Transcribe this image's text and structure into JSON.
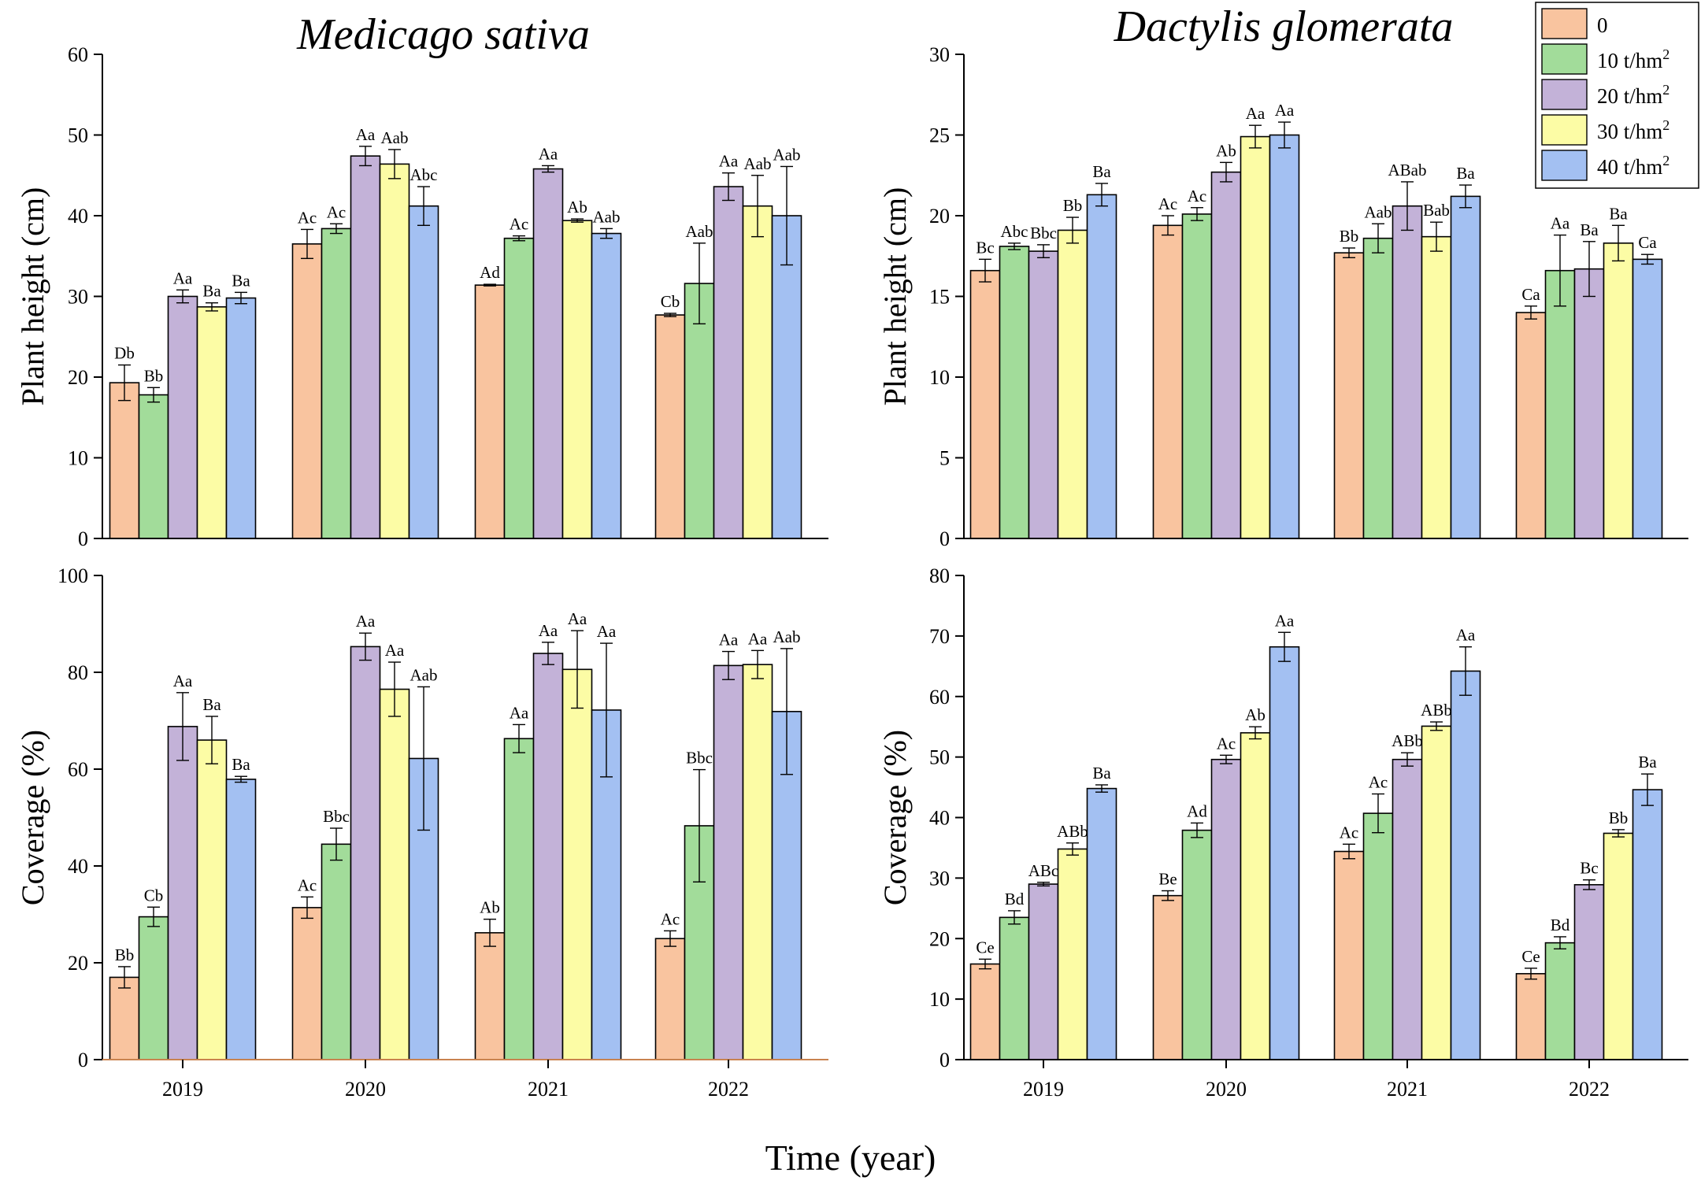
{
  "figure": {
    "xlabel": "Time (year)",
    "series_names": [
      "0",
      "10 t/hm",
      "20 t/hm",
      "30 t/hm",
      "40 t/hm"
    ],
    "series_superscripts": [
      "",
      "2",
      "2",
      "2",
      "2"
    ],
    "series_colors": [
      "#F9C49F",
      "#A2DC9A",
      "#C3B2D8",
      "#FCFCA5",
      "#A3C0F2"
    ],
    "years": [
      "2019",
      "2020",
      "2021",
      "2022"
    ]
  },
  "chart_data": [
    {
      "id": "ms_height",
      "type": "bar",
      "title": "Medicago sativa",
      "ylabel": "Plant height (cm)",
      "ylim": [
        0,
        60
      ],
      "yticks": [
        0,
        10,
        20,
        30,
        40,
        50,
        60
      ],
      "categories": [
        "2019",
        "2020",
        "2021",
        "2022"
      ],
      "series": [
        {
          "name": "0",
          "values": [
            19.3,
            36.5,
            31.4,
            27.7
          ],
          "errors": [
            2.2,
            1.8,
            0.1,
            0.2
          ],
          "labels": [
            "Db",
            "Ac",
            "Ad",
            "Cb"
          ]
        },
        {
          "name": "10 t/hm2",
          "values": [
            17.8,
            38.4,
            37.2,
            31.6
          ],
          "errors": [
            0.9,
            0.6,
            0.3,
            5.0
          ],
          "labels": [
            "Bb",
            "Ac",
            "Ac",
            "Aab"
          ]
        },
        {
          "name": "20 t/hm2",
          "values": [
            30.0,
            47.4,
            45.8,
            43.6
          ],
          "errors": [
            0.8,
            1.2,
            0.4,
            1.7
          ],
          "labels": [
            "Aa",
            "Aa",
            "Aa",
            "Aa"
          ]
        },
        {
          "name": "30 t/hm2",
          "values": [
            28.7,
            46.4,
            39.4,
            41.2
          ],
          "errors": [
            0.5,
            1.8,
            0.2,
            3.8
          ],
          "labels": [
            "Ba",
            "Aab",
            "Ab",
            "Aab"
          ]
        },
        {
          "name": "40 t/hm2",
          "values": [
            29.8,
            41.2,
            37.8,
            40.0
          ],
          "errors": [
            0.7,
            2.4,
            0.6,
            6.1
          ],
          "labels": [
            "Ba",
            "Abc",
            "Aab",
            "Aab"
          ]
        }
      ]
    },
    {
      "id": "dg_height",
      "type": "bar",
      "title": "Dactylis glomerata",
      "ylabel": "Plant height (cm)",
      "ylim": [
        0,
        30
      ],
      "yticks": [
        0,
        5,
        10,
        15,
        20,
        25,
        30
      ],
      "categories": [
        "2019",
        "2020",
        "2021",
        "2022"
      ],
      "series": [
        {
          "name": "0",
          "values": [
            16.6,
            19.4,
            17.7,
            14.0
          ],
          "errors": [
            0.7,
            0.6,
            0.3,
            0.4
          ],
          "labels": [
            "Bc",
            "Ac",
            "Bb",
            "Ca"
          ]
        },
        {
          "name": "10 t/hm2",
          "values": [
            18.1,
            20.1,
            18.6,
            16.6
          ],
          "errors": [
            0.2,
            0.4,
            0.9,
            2.2
          ],
          "labels": [
            "Abc",
            "Ac",
            "Aab",
            "Aa"
          ]
        },
        {
          "name": "20 t/hm2",
          "values": [
            17.8,
            22.7,
            20.6,
            16.7
          ],
          "errors": [
            0.4,
            0.6,
            1.5,
            1.7
          ],
          "labels": [
            "Bbc",
            "Ab",
            "ABab",
            "Ba"
          ]
        },
        {
          "name": "30 t/hm2",
          "values": [
            19.1,
            24.9,
            18.7,
            18.3
          ],
          "errors": [
            0.8,
            0.7,
            0.9,
            1.1
          ],
          "labels": [
            "Bb",
            "Aa",
            "Bab",
            "Ba"
          ]
        },
        {
          "name": "40 t/hm2",
          "values": [
            21.3,
            25.0,
            21.2,
            17.3
          ],
          "errors": [
            0.7,
            0.8,
            0.7,
            0.3
          ],
          "labels": [
            "Ba",
            "Aa",
            "Ba",
            "Ca"
          ]
        }
      ]
    },
    {
      "id": "ms_coverage",
      "type": "bar",
      "title": "",
      "ylabel": "Coverage (%)",
      "ylim": [
        0,
        100
      ],
      "yticks": [
        0,
        20,
        40,
        60,
        80,
        100
      ],
      "categories": [
        "2019",
        "2020",
        "2021",
        "2022"
      ],
      "series": [
        {
          "name": "0",
          "values": [
            17.0,
            31.4,
            26.2,
            25.0
          ],
          "errors": [
            2.2,
            2.2,
            2.8,
            1.6
          ],
          "labels": [
            "Bb",
            "Ac",
            "Ab",
            "Ac"
          ]
        },
        {
          "name": "10 t/hm2",
          "values": [
            29.5,
            44.5,
            66.3,
            48.3
          ],
          "errors": [
            2.0,
            3.3,
            2.9,
            11.6
          ],
          "labels": [
            "Cb",
            "Bbc",
            "Aa",
            "Bbc"
          ]
        },
        {
          "name": "20 t/hm2",
          "values": [
            68.8,
            85.3,
            83.9,
            81.4
          ],
          "errors": [
            7.0,
            2.8,
            2.3,
            2.9
          ],
          "labels": [
            "Aa",
            "Aa",
            "Aa",
            "Aa"
          ]
        },
        {
          "name": "30 t/hm2",
          "values": [
            66.0,
            76.5,
            80.6,
            81.6
          ],
          "errors": [
            4.9,
            5.6,
            8.0,
            2.9
          ],
          "labels": [
            "Ba",
            "Aa",
            "Aa",
            "Aa"
          ]
        },
        {
          "name": "40 t/hm2",
          "values": [
            57.9,
            62.2,
            72.2,
            71.9
          ],
          "errors": [
            0.6,
            14.8,
            13.8,
            13.0
          ],
          "labels": [
            "Ba",
            "Aab",
            "Aa",
            "Aab"
          ]
        }
      ]
    },
    {
      "id": "dg_coverage",
      "type": "bar",
      "title": "",
      "ylabel": "Coverage (%)",
      "ylim": [
        0,
        80
      ],
      "yticks": [
        0,
        10,
        20,
        30,
        40,
        50,
        60,
        70,
        80
      ],
      "categories": [
        "2019",
        "2020",
        "2021",
        "2022"
      ],
      "series": [
        {
          "name": "0",
          "values": [
            15.8,
            27.1,
            34.4,
            14.2
          ],
          "errors": [
            0.8,
            0.8,
            1.2,
            0.9
          ],
          "labels": [
            "Ce",
            "Be",
            "Ac",
            "Ce"
          ]
        },
        {
          "name": "10 t/hm2",
          "values": [
            23.5,
            37.9,
            40.7,
            19.3
          ],
          "errors": [
            1.1,
            1.2,
            3.2,
            1.0
          ],
          "labels": [
            "Bd",
            "Ad",
            "Ac",
            "Bd"
          ]
        },
        {
          "name": "20 t/hm2",
          "values": [
            29.0,
            49.6,
            49.6,
            28.9
          ],
          "errors": [
            0.3,
            0.7,
            1.1,
            0.8
          ],
          "labels": [
            "ABc",
            "Ac",
            "ABb",
            "Bc"
          ]
        },
        {
          "name": "30 t/hm2",
          "values": [
            34.8,
            54.0,
            55.1,
            37.4
          ],
          "errors": [
            1.0,
            1.0,
            0.7,
            0.6
          ],
          "labels": [
            "ABb",
            "Ab",
            "ABb",
            "Bb"
          ]
        },
        {
          "name": "40 t/hm2",
          "values": [
            44.8,
            68.2,
            64.2,
            44.6
          ],
          "errors": [
            0.6,
            2.4,
            4.0,
            2.6
          ],
          "labels": [
            "Ba",
            "Aa",
            "Aa",
            "Ba"
          ]
        }
      ]
    }
  ]
}
